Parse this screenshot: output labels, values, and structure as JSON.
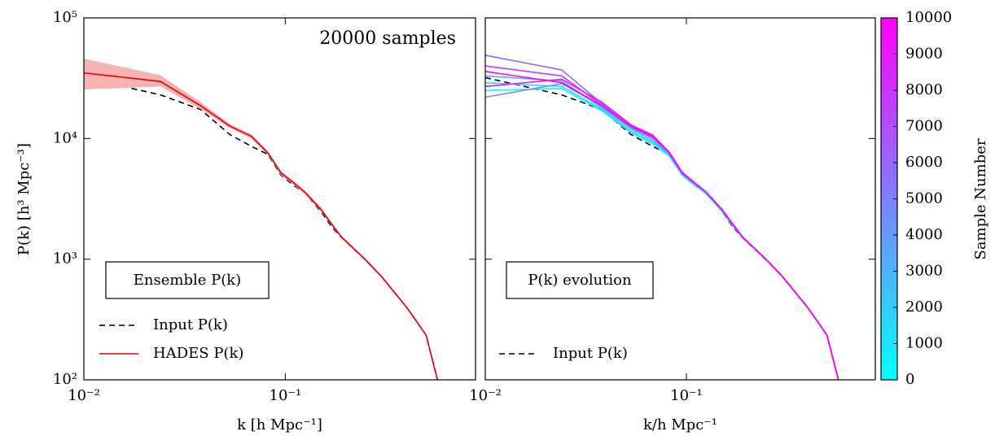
{
  "chart_data": [
    {
      "type": "line",
      "xlabel": "k  [h Mpc⁻¹]",
      "ylabel": "P(k)  [h³ Mpc⁻³]",
      "annotation": "20000 samples",
      "legend_title": "Ensemble P(k)",
      "log_x": true,
      "log_y": true,
      "xlim": [
        0.01,
        0.88
      ],
      "ylim": [
        100,
        100000
      ],
      "xticks": [
        {
          "value": 0.01,
          "label": "10⁻²"
        },
        {
          "value": 0.1,
          "label": "10⁻¹"
        }
      ],
      "yticks": [
        {
          "value": 100,
          "label": "10²"
        },
        {
          "value": 1000,
          "label": "10³"
        },
        {
          "value": 10000,
          "label": "10⁴"
        },
        {
          "value": 100000,
          "label": "10⁵"
        }
      ],
      "x": [
        0.01,
        0.024,
        0.038,
        0.053,
        0.068,
        0.082,
        0.095,
        0.11,
        0.125,
        0.15,
        0.17,
        0.19,
        0.25,
        0.3,
        0.4,
        0.5,
        0.57
      ],
      "series": [
        {
          "name": "Input P(k)",
          "color": "#000000",
          "dashed": true,
          "values": [
            32000,
            23000,
            17400,
            10800,
            8600,
            7400,
            5000,
            4100,
            3550,
            2500,
            1860,
            1510,
            980,
            720,
            400,
            235,
            100
          ]
        },
        {
          "name": "HADES P(k)",
          "color": "#e8000b",
          "dashed": false,
          "band_color": "#f7b2b2",
          "values": [
            35000,
            29700,
            18700,
            12700,
            10400,
            7600,
            5200,
            4300,
            3600,
            2600,
            1950,
            1530,
            990,
            720,
            400,
            235,
            100
          ],
          "band_lower": [
            25500,
            27000,
            17500,
            12200,
            10000,
            7350,
            5000,
            4150,
            3480,
            2520,
            1890,
            1490,
            965,
            705,
            392,
            230,
            98
          ],
          "band_upper": [
            46000,
            33500,
            20000,
            13200,
            10800,
            7850,
            5400,
            4450,
            3720,
            2680,
            2010,
            1570,
            1015,
            735,
            408,
            240,
            102
          ]
        }
      ]
    },
    {
      "type": "line",
      "xlabel": "k/h Mpc⁻¹",
      "legend_title": "P(k) evolution",
      "log_x": true,
      "log_y": true,
      "xlim": [
        0.01,
        0.87
      ],
      "ylim": [
        100,
        100000
      ],
      "xticks": [
        {
          "value": 0.01,
          "label": "10⁻²"
        },
        {
          "value": 0.1,
          "label": "10⁻¹"
        }
      ],
      "x": [
        0.01,
        0.024,
        0.038,
        0.053,
        0.068,
        0.082,
        0.095,
        0.11,
        0.125,
        0.15,
        0.17,
        0.19,
        0.25,
        0.3,
        0.4,
        0.5,
        0.57
      ],
      "series": [
        {
          "name": "Input P(k)",
          "color": "#000000",
          "dashed": true,
          "values": [
            32000,
            23000,
            17400,
            10800,
            8600,
            7400,
            5000,
            4100,
            3550,
            2500,
            1860,
            1510,
            980,
            720,
            400,
            235,
            100
          ]
        }
      ],
      "sample_series": [
        {
          "sample": 500,
          "values": [
            25000,
            26000,
            17000,
            11200,
            9000,
            7200,
            5000,
            4100,
            3500,
            2500,
            1900,
            1520,
            985,
            720,
            400,
            235,
            100
          ]
        },
        {
          "sample": 1500,
          "values": [
            29000,
            27000,
            17500,
            11500,
            9300,
            7400,
            5100,
            4150,
            3550,
            2520,
            1920,
            1525,
            988,
            720,
            400,
            235,
            100
          ]
        },
        {
          "sample": 3000,
          "values": [
            33000,
            30000,
            18000,
            12000,
            9600,
            7500,
            5150,
            4200,
            3580,
            2550,
            1930,
            1530,
            990,
            720,
            400,
            235,
            100
          ]
        },
        {
          "sample": 4500,
          "values": [
            22000,
            28500,
            18500,
            12300,
            10000,
            7600,
            5200,
            4250,
            3600,
            2570,
            1940,
            1530,
            990,
            720,
            400,
            235,
            100
          ]
        },
        {
          "sample": 6000,
          "values": [
            49000,
            37000,
            19500,
            12500,
            10200,
            7700,
            5250,
            4280,
            3600,
            2580,
            1950,
            1530,
            990,
            720,
            400,
            235,
            100
          ]
        },
        {
          "sample": 7500,
          "values": [
            40000,
            33000,
            19000,
            12800,
            10500,
            7800,
            5300,
            4300,
            3620,
            2600,
            1960,
            1535,
            992,
            720,
            400,
            235,
            100
          ]
        },
        {
          "sample": 9000,
          "values": [
            27000,
            31000,
            20000,
            13000,
            10700,
            7700,
            5250,
            4300,
            3600,
            2600,
            1950,
            1530,
            990,
            720,
            400,
            235,
            100
          ]
        },
        {
          "sample": 10000,
          "values": [
            36000,
            29000,
            18800,
            12600,
            10400,
            7650,
            5200,
            4280,
            3600,
            2590,
            1950,
            1530,
            990,
            720,
            400,
            235,
            100
          ]
        }
      ],
      "colorbar": {
        "label": "Sample Number",
        "lim": [
          0,
          10000
        ],
        "ticks": [
          0,
          1000,
          2000,
          3000,
          4000,
          5000,
          6000,
          7000,
          8000,
          9000,
          10000
        ],
        "colors": [
          "#00ffff",
          "#ff00ff"
        ]
      }
    }
  ]
}
